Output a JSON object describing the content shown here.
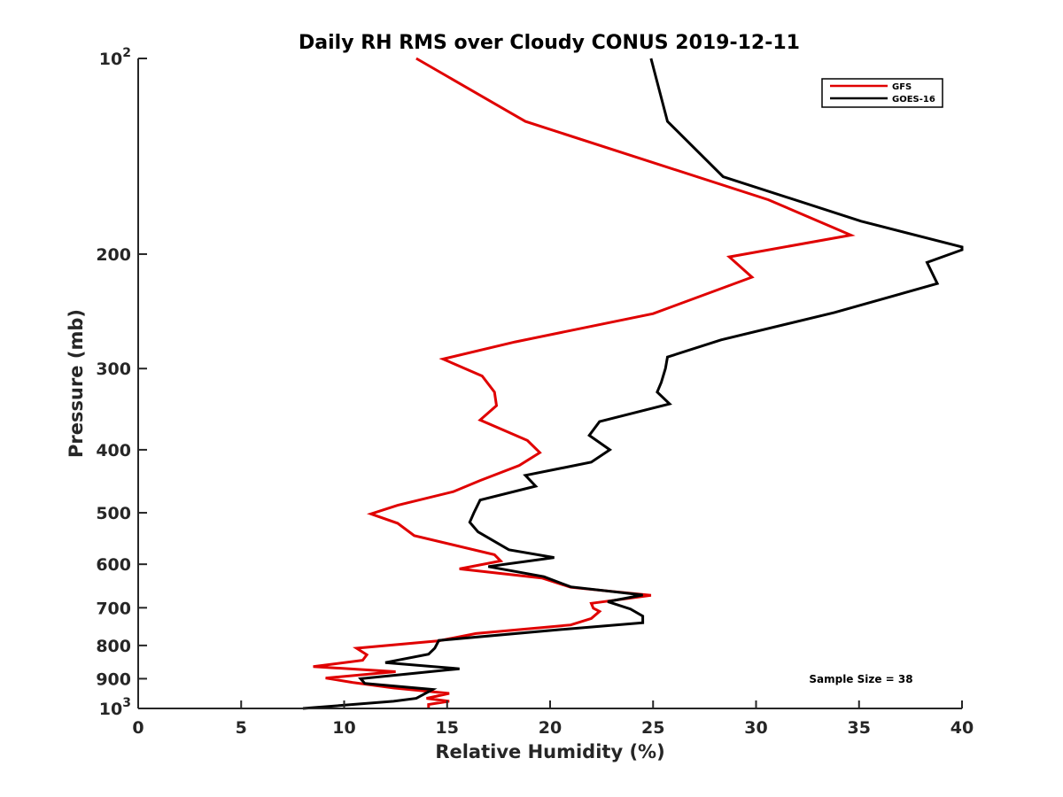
{
  "chart_data": {
    "type": "line",
    "title": "Daily RH RMS over Cloudy CONUS 2019-12-11",
    "xlabel": "Relative Humidity (%)",
    "ylabel": "Pressure (mb)",
    "xlim": [
      0,
      40
    ],
    "ylim": [
      100,
      1000
    ],
    "y_scale": "log",
    "y_reversed": true,
    "x_ticks": [
      "0",
      "5",
      "10",
      "15",
      "20",
      "25",
      "30",
      "35",
      "40"
    ],
    "y_ticks": [
      {
        "value": 100,
        "base": "10",
        "exp": "2"
      },
      {
        "value": 200,
        "label": "200"
      },
      {
        "value": 300,
        "label": "300"
      },
      {
        "value": 400,
        "label": "400"
      },
      {
        "value": 500,
        "label": "500"
      },
      {
        "value": 600,
        "label": "600"
      },
      {
        "value": 700,
        "label": "700"
      },
      {
        "value": 800,
        "label": "800"
      },
      {
        "value": 900,
        "label": "900"
      },
      {
        "value": 1000,
        "base": "10",
        "exp": "3"
      }
    ],
    "grid": false,
    "legend_position": "top-right",
    "annotation": "Sample Size = 38",
    "series": [
      {
        "name": "GFS",
        "color": "#e00000",
        "points": [
          [
            13.5,
            100
          ],
          [
            18.8,
            125
          ],
          [
            30.6,
            165
          ],
          [
            34.6,
            187
          ],
          [
            28.7,
            202
          ],
          [
            29.8,
            217
          ],
          [
            25.0,
            247
          ],
          [
            18.3,
            273
          ],
          [
            14.8,
            290
          ],
          [
            16.7,
            308
          ],
          [
            17.3,
            326
          ],
          [
            17.4,
            342
          ],
          [
            16.6,
            360
          ],
          [
            18.9,
            387
          ],
          [
            19.5,
            404
          ],
          [
            18.5,
            423
          ],
          [
            16.6,
            446
          ],
          [
            15.3,
            464
          ],
          [
            12.6,
            487
          ],
          [
            11.3,
            502
          ],
          [
            12.6,
            519
          ],
          [
            13.4,
            542
          ],
          [
            17.3,
            580
          ],
          [
            17.6,
            593
          ],
          [
            15.6,
            610
          ],
          [
            19.6,
            630
          ],
          [
            21.0,
            651
          ],
          [
            24.9,
            670
          ],
          [
            22.0,
            689
          ],
          [
            22.1,
            701
          ],
          [
            22.4,
            709
          ],
          [
            22.0,
            727
          ],
          [
            21.0,
            744
          ],
          [
            16.4,
            767
          ],
          [
            14.6,
            787
          ],
          [
            10.6,
            808
          ],
          [
            11.1,
            827
          ],
          [
            10.9,
            843
          ],
          [
            8.5,
            862
          ],
          [
            12.5,
            878
          ],
          [
            9.1,
            898
          ],
          [
            10.4,
            912
          ],
          [
            12.4,
            930
          ],
          [
            15.1,
            948
          ],
          [
            14.0,
            965
          ],
          [
            15.1,
            975
          ],
          [
            14.1,
            986
          ],
          [
            14.1,
            1000
          ]
        ]
      },
      {
        "name": "GOES-16",
        "color": "#000000",
        "points": [
          [
            24.9,
            100
          ],
          [
            25.7,
            125
          ],
          [
            28.4,
            152
          ],
          [
            35.1,
            178
          ],
          [
            40.0,
            195
          ],
          [
            40.0,
            197
          ],
          [
            38.3,
            206
          ],
          [
            38.8,
            222
          ],
          [
            33.8,
            246
          ],
          [
            28.3,
            271
          ],
          [
            25.7,
            288
          ],
          [
            25.6,
            300
          ],
          [
            25.4,
            315
          ],
          [
            25.2,
            326
          ],
          [
            25.8,
            340
          ],
          [
            22.4,
            362
          ],
          [
            21.9,
            380
          ],
          [
            22.9,
            400
          ],
          [
            22.0,
            418
          ],
          [
            18.8,
            438
          ],
          [
            19.3,
            455
          ],
          [
            16.6,
            478
          ],
          [
            16.3,
            500
          ],
          [
            16.1,
            517
          ],
          [
            16.5,
            535
          ],
          [
            18.0,
            570
          ],
          [
            20.2,
            586
          ],
          [
            17.0,
            605
          ],
          [
            19.7,
            627
          ],
          [
            21.0,
            650
          ],
          [
            24.5,
            669
          ],
          [
            22.8,
            685
          ],
          [
            23.9,
            703
          ],
          [
            24.5,
            721
          ],
          [
            24.5,
            738
          ],
          [
            20.1,
            758
          ],
          [
            14.6,
            786
          ],
          [
            14.4,
            808
          ],
          [
            14.1,
            825
          ],
          [
            12.0,
            850
          ],
          [
            15.6,
            869
          ],
          [
            10.8,
            900
          ],
          [
            11.0,
            915
          ],
          [
            14.3,
            935
          ],
          [
            13.5,
            965
          ],
          [
            12.4,
            975
          ],
          [
            8.0,
            1000
          ]
        ]
      }
    ]
  }
}
